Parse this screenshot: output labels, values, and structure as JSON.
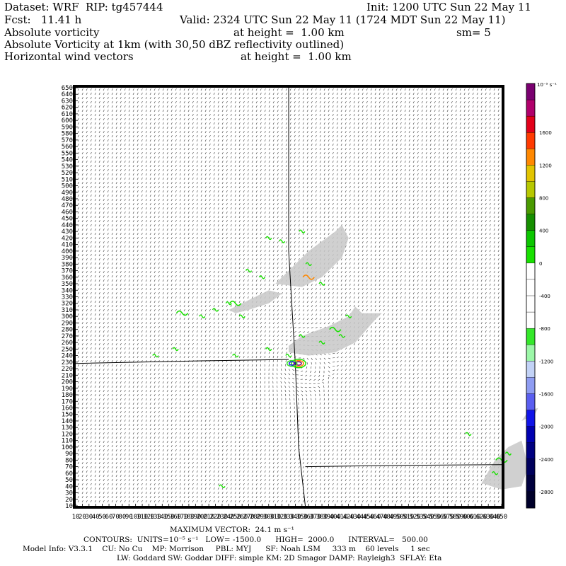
{
  "header": {
    "dataset": "Dataset: WRF  RIP: tg457444",
    "init": "Init: 1200 UTC Sun 22 May 11",
    "fcst": "Fcst:   11.41 h",
    "valid": "Valid: 2324 UTC Sun 22 May 11 (1724 MDT Sun 22 May 11)",
    "field1": "Absolute vorticity",
    "field1_height": "at height =  1.00 km",
    "smoothing": "sm= 5",
    "field2": "Absolute Vorticity at 1km (with 30,50 dBZ reflectivity outlined)",
    "field3": "Horizontal wind vectors",
    "field3_height": "at height =  1.00 km"
  },
  "footer": {
    "max_vector": "MAXIMUM VECTOR:  24.1 m s⁻¹",
    "contours": "CONTOURS:  UNITS=10⁻⁵ s⁻¹   LOW= -1500.0      HIGH=  2000.0      INTERVAL=   500.00",
    "model_info": "Model Info: V3.3.1    CU: No Cu    MP: Morrison     PBL: MYJ      SF: Noah LSM     333 m    60 levels     1 sec",
    "model_info2": "LW: Goddard SW: Goddar DIFF: simple KM: 2D Smagor DAMP: Rayleigh3  SFLAY: Eta"
  },
  "colorbar": {
    "units": "10⁻⁵ s⁻¹",
    "labels": [
      "1600",
      "1200",
      "800",
      "400",
      "0",
      "-400",
      "-800",
      "-1200",
      "-1600",
      "-2000",
      "-2400",
      "-2800"
    ],
    "colors": [
      "#7a0070",
      "#b0006b",
      "#e2001a",
      "#ff3a00",
      "#ff8800",
      "#e2c400",
      "#b7c800",
      "#4a9a00",
      "#168f00",
      "#0cc600",
      "#18e000",
      "#ffffff",
      "#ffffff",
      "#ffffff",
      "#ffffff",
      "#34e82a",
      "#9cf7a8",
      "#c2d2f6",
      "#8e9cf2",
      "#5a5ef0",
      "#1014e8",
      "#0000b0",
      "#000080",
      "#00005c",
      "#00003e",
      "#00002a"
    ]
  },
  "chart_data": {
    "type": "heatmap",
    "title": "Absolute Vorticity at 1km (with 30,50 dBZ reflectivity outlined)",
    "xlabel": "",
    "ylabel": "",
    "x_ticks": [
      10,
      20,
      30,
      40,
      50,
      60,
      70,
      80,
      90,
      100,
      110,
      120,
      130,
      140,
      150,
      160,
      170,
      180,
      190,
      200,
      210,
      220,
      230,
      240,
      250,
      260,
      270,
      280,
      290,
      300,
      310,
      320,
      330,
      340,
      350,
      360,
      370,
      380,
      390,
      400,
      410,
      420,
      430,
      440,
      450,
      460,
      470,
      480,
      490,
      500,
      510,
      520,
      530,
      540,
      550,
      560,
      570,
      580,
      590,
      600,
      610,
      620,
      630,
      640,
      650
    ],
    "y_ticks": [
      10,
      20,
      30,
      40,
      50,
      60,
      70,
      80,
      90,
      100,
      110,
      120,
      130,
      140,
      150,
      160,
      170,
      180,
      190,
      200,
      210,
      220,
      230,
      240,
      250,
      260,
      270,
      280,
      290,
      300,
      310,
      320,
      330,
      340,
      350,
      360,
      370,
      380,
      390,
      400,
      410,
      420,
      430,
      440,
      450,
      460,
      470,
      480,
      490,
      500,
      510,
      520,
      530,
      540,
      550,
      560,
      570,
      580,
      590,
      600,
      610,
      620,
      630,
      640,
      650
    ],
    "xlim": [
      10,
      650
    ],
    "ylim": [
      10,
      650
    ],
    "units": "10⁻⁵ s⁻¹",
    "contour_low": -1500.0,
    "contour_high": 2000.0,
    "contour_interval": 500.0,
    "max_vector_m_s": 24.1,
    "reflectivity_regions": [
      {
        "x": [
          330,
          350,
          390,
          420,
          430,
          440,
          470,
          460,
          430,
          400,
          360,
          330
        ],
        "y": [
          255,
          270,
          285,
          300,
          315,
          305,
          305,
          295,
          260,
          245,
          240,
          245
        ]
      },
      {
        "x": [
          310,
          330,
          360,
          400,
          410,
          420,
          410,
          380,
          350
        ],
        "y": [
          350,
          370,
          400,
          430,
          440,
          420,
          390,
          360,
          345
        ]
      },
      {
        "x": [
          240,
          260,
          300,
          320,
          300,
          270,
          250
        ],
        "y": [
          310,
          320,
          340,
          335,
          320,
          310,
          305
        ]
      },
      {
        "x": [
          620,
          640,
          660,
          680,
          690,
          680,
          650
        ],
        "y": [
          45,
          80,
          100,
          110,
          70,
          40,
          35
        ]
      },
      {
        "x": [
          680,
          700,
          705,
          690
        ],
        "y": [
          140,
          150,
          160,
          155
        ]
      }
    ],
    "vorticity_features": [
      {
        "x": 345,
        "y": 228,
        "value": 2000,
        "note": "strong couplet"
      },
      {
        "x": 335,
        "y": 228,
        "value": -1500
      },
      {
        "x": 360,
        "y": 360,
        "value": 800
      },
      {
        "x": 400,
        "y": 280,
        "value": 400
      },
      {
        "x": 250,
        "y": 320,
        "value": 400
      },
      {
        "x": 170,
        "y": 305,
        "value": 400
      },
      {
        "x": 650,
        "y": 80,
        "value": 400
      }
    ],
    "boundaries": [
      {
        "x": [
          10,
          200,
          330
        ],
        "y": [
          228,
          232,
          234
        ]
      },
      {
        "x": [
          330,
          330,
          340,
          345,
          355
        ],
        "y": [
          650,
          400,
          228,
          100,
          10
        ]
      },
      {
        "x": [
          355,
          500,
          650
        ],
        "y": [
          70,
          72,
          73
        ]
      }
    ]
  }
}
